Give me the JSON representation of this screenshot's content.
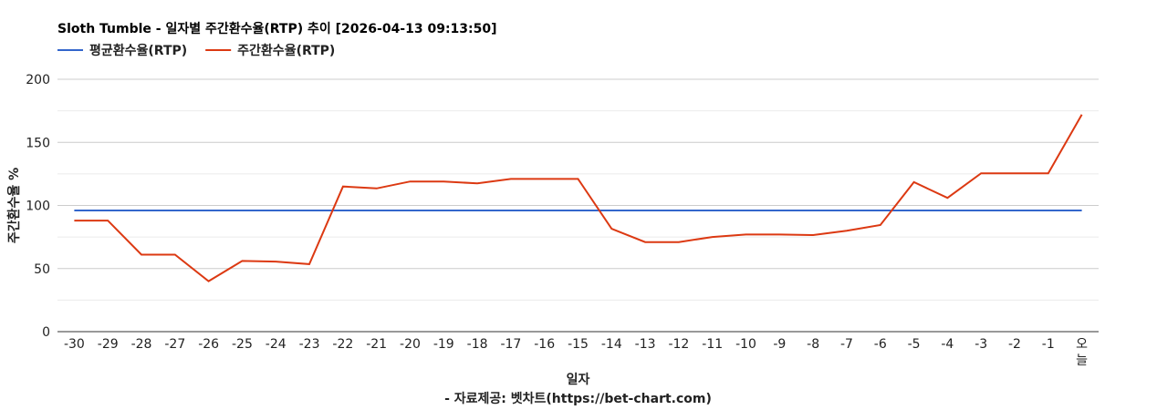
{
  "chart_data": {
    "type": "line",
    "title": "Sloth Tumble - 일자별 주간환수율(RTP) 추이 [2026-04-13 09:13:50]",
    "xlabel": "일자",
    "ylabel": "주간환수율 %",
    "source_note": "- 자료제공: 벳차트(https://bet-chart.com)",
    "categories": [
      "-30",
      "-29",
      "-28",
      "-27",
      "-26",
      "-25",
      "-24",
      "-23",
      "-22",
      "-21",
      "-20",
      "-19",
      "-18",
      "-17",
      "-16",
      "-15",
      "-14",
      "-13",
      "-12",
      "-11",
      "-10",
      "-9",
      "-8",
      "-7",
      "-6",
      "-5",
      "-4",
      "-3",
      "-2",
      "-1",
      "오늘"
    ],
    "ylim": [
      0,
      200
    ],
    "yticks": [
      0,
      50,
      100,
      150,
      200
    ],
    "grid": true,
    "legend_position": "top-left",
    "series": [
      {
        "name": "평균환수율(RTP)",
        "color": "#3366cc",
        "values": [
          96,
          96,
          96,
          96,
          96,
          96,
          96,
          96,
          96,
          96,
          96,
          96,
          96,
          96,
          96,
          96,
          96,
          96,
          96,
          96,
          96,
          96,
          96,
          96,
          96,
          96,
          96,
          96,
          96,
          96,
          96
        ]
      },
      {
        "name": "주간환수율(RTP)",
        "color": "#dc3912",
        "values": [
          88,
          88,
          61,
          61,
          40,
          56,
          55.5,
          53.5,
          115,
          113.5,
          119,
          119,
          117.5,
          121,
          121,
          121,
          81.5,
          71,
          71,
          75,
          77,
          77,
          76.5,
          80,
          84.5,
          118.5,
          106,
          125.5,
          125.5,
          125.5,
          172
        ]
      }
    ]
  }
}
